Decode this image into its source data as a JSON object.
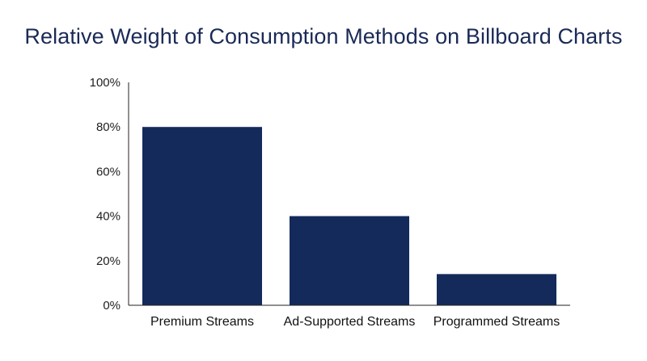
{
  "chart_data": {
    "type": "bar",
    "title": "Relative Weight of Consumption Methods on Billboard Charts",
    "categories": [
      "Premium Streams",
      "Ad-Supported Streams",
      "Programmed Streams"
    ],
    "values": [
      80,
      40,
      14
    ],
    "xlabel": "",
    "ylabel": "",
    "ylim": [
      0,
      100
    ],
    "yticks": [
      0,
      20,
      40,
      60,
      80,
      100
    ],
    "ytick_labels": [
      "0%",
      "20%",
      "40%",
      "60%",
      "80%",
      "100%"
    ],
    "grid": false,
    "legend": "none",
    "bar_color": "#132a5b",
    "axis_color": "#222222"
  }
}
